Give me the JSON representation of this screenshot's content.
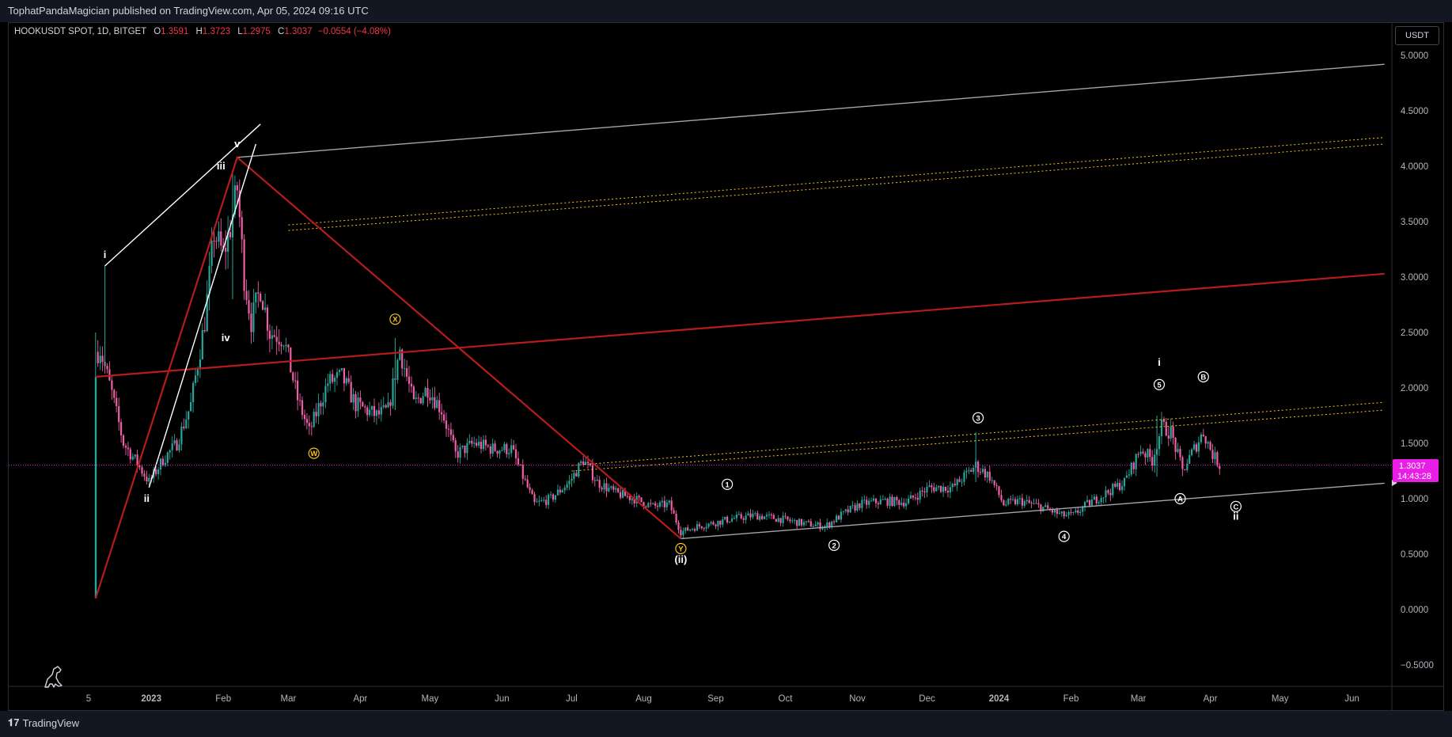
{
  "header": {
    "published": "TophatPandaMagician published on TradingView.com, Apr 05, 2024 09:16 UTC"
  },
  "legend": {
    "symbol": "HOOKUSDT SPOT, 1D, BITGET",
    "o_label": "O",
    "o_value": "1.3591",
    "h_label": "H",
    "h_value": "1.3723",
    "l_label": "L",
    "l_value": "1.2975",
    "c_label": "C",
    "c_value": "1.3037",
    "change": "−0.0554 (−4.08%)"
  },
  "currency_button": "USDT",
  "price_tag": {
    "price": "1.3037",
    "countdown": "14:43:28"
  },
  "footer": {
    "logo_text": "TradingView"
  },
  "colors": {
    "up": "#26a69a",
    "down": "#ef5fa7",
    "red_line": "#b71c1c",
    "silver": "#a3a6b0",
    "yellow": "#f5c518",
    "tag": "#e91ee6"
  },
  "chart_data": {
    "type": "candlestick",
    "symbol": "HOOKUSDT",
    "ylim": [
      -0.6,
      5.15
    ],
    "y_ticks": [
      "5.0000",
      "4.5000",
      "4.0000",
      "3.5000",
      "3.0000",
      "2.5000",
      "2.0000",
      "1.5000",
      "1.0000",
      "0.5000",
      "0.0000",
      "−0.5000"
    ],
    "x_ticks": [
      "5",
      "2023",
      "Feb",
      "Mar",
      "Apr",
      "May",
      "Jun",
      "Jul",
      "Aug",
      "Sep",
      "Oct",
      "Nov",
      "Dec",
      "2024",
      "Feb",
      "Mar",
      "Apr",
      "May",
      "Jun"
    ],
    "close_path": [
      {
        "x": "2022-12-08",
        "y": 2.3
      },
      {
        "x": "2022-12-10",
        "y": 2.35
      },
      {
        "x": "2022-12-15",
        "y": 1.95
      },
      {
        "x": "2022-12-20",
        "y": 1.5
      },
      {
        "x": "2022-12-25",
        "y": 1.35
      },
      {
        "x": "2022-12-31",
        "y": 1.15
      },
      {
        "x": "2023-01-06",
        "y": 1.35
      },
      {
        "x": "2023-01-12",
        "y": 1.5
      },
      {
        "x": "2023-01-18",
        "y": 1.85
      },
      {
        "x": "2023-01-24",
        "y": 2.6
      },
      {
        "x": "2023-01-28",
        "y": 3.4
      },
      {
        "x": "2023-02-01",
        "y": 3.2
      },
      {
        "x": "2023-02-04",
        "y": 3.45
      },
      {
        "x": "2023-02-07",
        "y": 3.8
      },
      {
        "x": "2023-02-10",
        "y": 3.0
      },
      {
        "x": "2023-02-13",
        "y": 2.6
      },
      {
        "x": "2023-02-17",
        "y": 2.9
      },
      {
        "x": "2023-02-21",
        "y": 2.5
      },
      {
        "x": "2023-02-27",
        "y": 2.45
      },
      {
        "x": "2023-03-05",
        "y": 1.9
      },
      {
        "x": "2023-03-10",
        "y": 1.6
      },
      {
        "x": "2023-03-18",
        "y": 2.05
      },
      {
        "x": "2023-03-24",
        "y": 2.1
      },
      {
        "x": "2023-03-30",
        "y": 1.85
      },
      {
        "x": "2023-04-08",
        "y": 1.75
      },
      {
        "x": "2023-04-13",
        "y": 1.8
      },
      {
        "x": "2023-04-18",
        "y": 2.35
      },
      {
        "x": "2023-04-24",
        "y": 1.85
      },
      {
        "x": "2023-04-30",
        "y": 2.0
      },
      {
        "x": "2023-05-06",
        "y": 1.8
      },
      {
        "x": "2023-05-12",
        "y": 1.4
      },
      {
        "x": "2023-05-20",
        "y": 1.5
      },
      {
        "x": "2023-05-28",
        "y": 1.45
      },
      {
        "x": "2023-06-05",
        "y": 1.45
      },
      {
        "x": "2023-06-10",
        "y": 1.2
      },
      {
        "x": "2023-06-15",
        "y": 0.95
      },
      {
        "x": "2023-06-22",
        "y": 1.0
      },
      {
        "x": "2023-06-30",
        "y": 1.15
      },
      {
        "x": "2023-07-06",
        "y": 1.35
      },
      {
        "x": "2023-07-12",
        "y": 1.15
      },
      {
        "x": "2023-07-20",
        "y": 1.05
      },
      {
        "x": "2023-07-28",
        "y": 1.0
      },
      {
        "x": "2023-08-05",
        "y": 0.93
      },
      {
        "x": "2023-08-12",
        "y": 0.95
      },
      {
        "x": "2023-08-17",
        "y": 0.7
      },
      {
        "x": "2023-08-24",
        "y": 0.75
      },
      {
        "x": "2023-08-31",
        "y": 0.78
      },
      {
        "x": "2023-09-08",
        "y": 0.82
      },
      {
        "x": "2023-09-18",
        "y": 0.85
      },
      {
        "x": "2023-09-28",
        "y": 0.82
      },
      {
        "x": "2023-10-08",
        "y": 0.78
      },
      {
        "x": "2023-10-18",
        "y": 0.75
      },
      {
        "x": "2023-10-25",
        "y": 0.85
      },
      {
        "x": "2023-11-02",
        "y": 0.95
      },
      {
        "x": "2023-11-12",
        "y": 0.98
      },
      {
        "x": "2023-11-22",
        "y": 0.97
      },
      {
        "x": "2023-12-02",
        "y": 1.1
      },
      {
        "x": "2023-12-12",
        "y": 1.1
      },
      {
        "x": "2023-12-22",
        "y": 1.3
      },
      {
        "x": "2023-12-28",
        "y": 1.2
      },
      {
        "x": "2024-01-03",
        "y": 0.95
      },
      {
        "x": "2024-01-10",
        "y": 0.98
      },
      {
        "x": "2024-01-20",
        "y": 0.92
      },
      {
        "x": "2024-01-28",
        "y": 0.85
      },
      {
        "x": "2024-02-02",
        "y": 0.85
      },
      {
        "x": "2024-02-08",
        "y": 0.95
      },
      {
        "x": "2024-02-16",
        "y": 1.05
      },
      {
        "x": "2024-02-24",
        "y": 1.15
      },
      {
        "x": "2024-03-02",
        "y": 1.45
      },
      {
        "x": "2024-03-07",
        "y": 1.35
      },
      {
        "x": "2024-03-11",
        "y": 1.65
      },
      {
        "x": "2024-03-15",
        "y": 1.6
      },
      {
        "x": "2024-03-20",
        "y": 1.25
      },
      {
        "x": "2024-03-25",
        "y": 1.45
      },
      {
        "x": "2024-03-29",
        "y": 1.6
      },
      {
        "x": "2024-04-02",
        "y": 1.4
      },
      {
        "x": "2024-04-05",
        "y": 1.3037
      }
    ],
    "wave_labels": [
      {
        "text": "i",
        "x": "2022-12-12",
        "y": 3.2
      },
      {
        "text": "ii",
        "x": "2022-12-30",
        "y": 1.0
      },
      {
        "text": "iii",
        "x": "2023-01-31",
        "y": 4.0
      },
      {
        "text": "iv",
        "x": "2023-02-02",
        "y": 2.45
      },
      {
        "text": "v",
        "x": "2023-02-07",
        "y": 4.2
      },
      {
        "text": "W",
        "x": "2023-03-12",
        "y": 1.41,
        "circle": true
      },
      {
        "text": "X",
        "x": "2023-04-16",
        "y": 2.62,
        "circle": true
      },
      {
        "text": "Y",
        "x": "2023-08-17",
        "y": 0.55,
        "circle": true
      },
      {
        "text": "(ii)",
        "x": "2023-08-17",
        "y": 0.45
      },
      {
        "text": "1",
        "x": "2023-09-06",
        "y": 1.13,
        "circle": true
      },
      {
        "text": "2",
        "x": "2023-10-22",
        "y": 0.58,
        "circle": true
      },
      {
        "text": "3",
        "x": "2023-12-23",
        "y": 1.73,
        "circle": true
      },
      {
        "text": "4",
        "x": "2024-01-29",
        "y": 0.66,
        "circle": true
      },
      {
        "text": "5",
        "x": "2024-03-10",
        "y": 2.03,
        "circle": true
      },
      {
        "text": "i",
        "x": "2024-03-10",
        "y": 2.23
      },
      {
        "text": "A",
        "x": "2024-03-19",
        "y": 1.0,
        "circle": true
      },
      {
        "text": "B",
        "x": "2024-03-29",
        "y": 2.1,
        "circle": true
      },
      {
        "text": "C",
        "x": "2024-04-12",
        "y": 0.93,
        "circle": true
      },
      {
        "text": "ii",
        "x": "2024-04-12",
        "y": 0.84
      }
    ]
  }
}
